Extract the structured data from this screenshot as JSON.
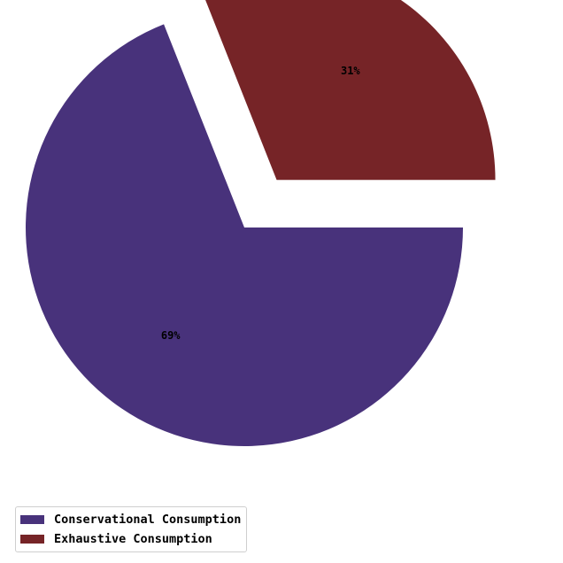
{
  "chart_data": {
    "type": "pie",
    "title": "",
    "slices": [
      {
        "label": "Conservational Consumption",
        "value": 69,
        "pct_label": "69%",
        "color": "#48327b",
        "exploded": false
      },
      {
        "label": "Exhaustive Consumption",
        "value": 31,
        "pct_label": "31%",
        "color": "#762427",
        "exploded": true
      }
    ],
    "legend_placement": "bottom-left"
  }
}
